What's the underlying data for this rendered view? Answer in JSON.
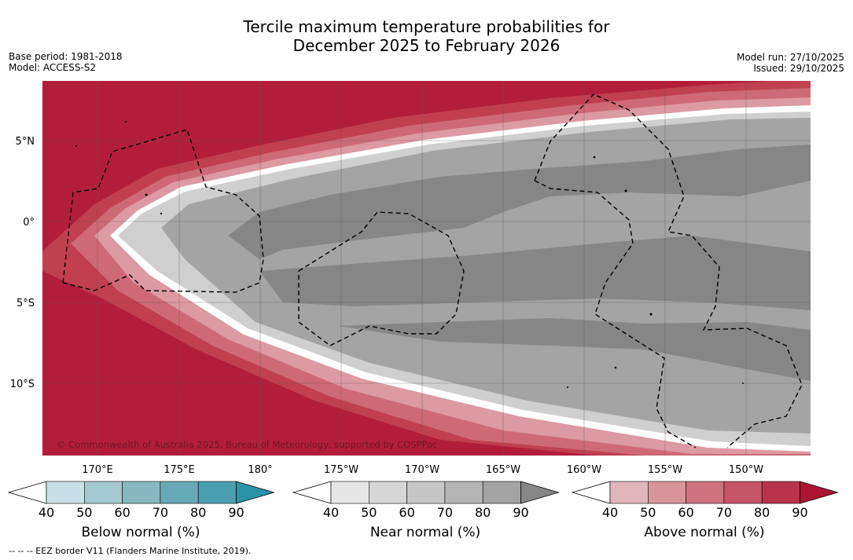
{
  "title": {
    "line1": "Tercile maximum temperature probabilities for",
    "line2": "December 2025 to February 2026"
  },
  "meta": {
    "base_period": "Base period: 1981-2018",
    "model": "Model: ACCESS-S2",
    "model_run": "Model run: 27/10/2025",
    "issued": "Issued: 29/10/2025"
  },
  "map": {
    "lat_labels": [
      "5°N",
      "0°",
      "5°S",
      "10°S"
    ],
    "lon_labels": [
      "170°E",
      "175°E",
      "180°",
      "175°W",
      "170°W",
      "165°W",
      "160°W",
      "155°W",
      "150°W"
    ],
    "copyright": "© Commonwealth of Australia 2025, Bureau of Meteorology, supported by COSPPac",
    "colors": {
      "above_90": "#b21e3a",
      "near_50": "#d0d0d0",
      "near_70": "#a6a6a6",
      "near_90": "#878787",
      "ocean_bg": "#b21e3a"
    }
  },
  "colorbars": [
    {
      "label": "Below normal (%)",
      "ticks": [
        "40",
        "50",
        "60",
        "70",
        "80",
        "90"
      ],
      "colors": [
        "#c8e1e6",
        "#a5c9d0",
        "#88b7c1",
        "#68a9b6",
        "#4a9faf",
        "#2b93a8"
      ]
    },
    {
      "label": "Near normal (%)",
      "ticks": [
        "40",
        "50",
        "60",
        "70",
        "80",
        "90"
      ],
      "colors": [
        "#e6e6e6",
        "#d6d6d6",
        "#c6c6c6",
        "#b5b5b5",
        "#a3a3a3",
        "#878787"
      ]
    },
    {
      "label": "Above normal (%)",
      "ticks": [
        "40",
        "50",
        "60",
        "70",
        "80",
        "90"
      ],
      "colors": [
        "#e0b6bc",
        "#d8949c",
        "#cd727e",
        "#c45466",
        "#b8344b",
        "#ad1433"
      ]
    }
  ],
  "footnote": "--  --  -- EEZ border V11 (Flanders Marine Institute, 2019)."
}
